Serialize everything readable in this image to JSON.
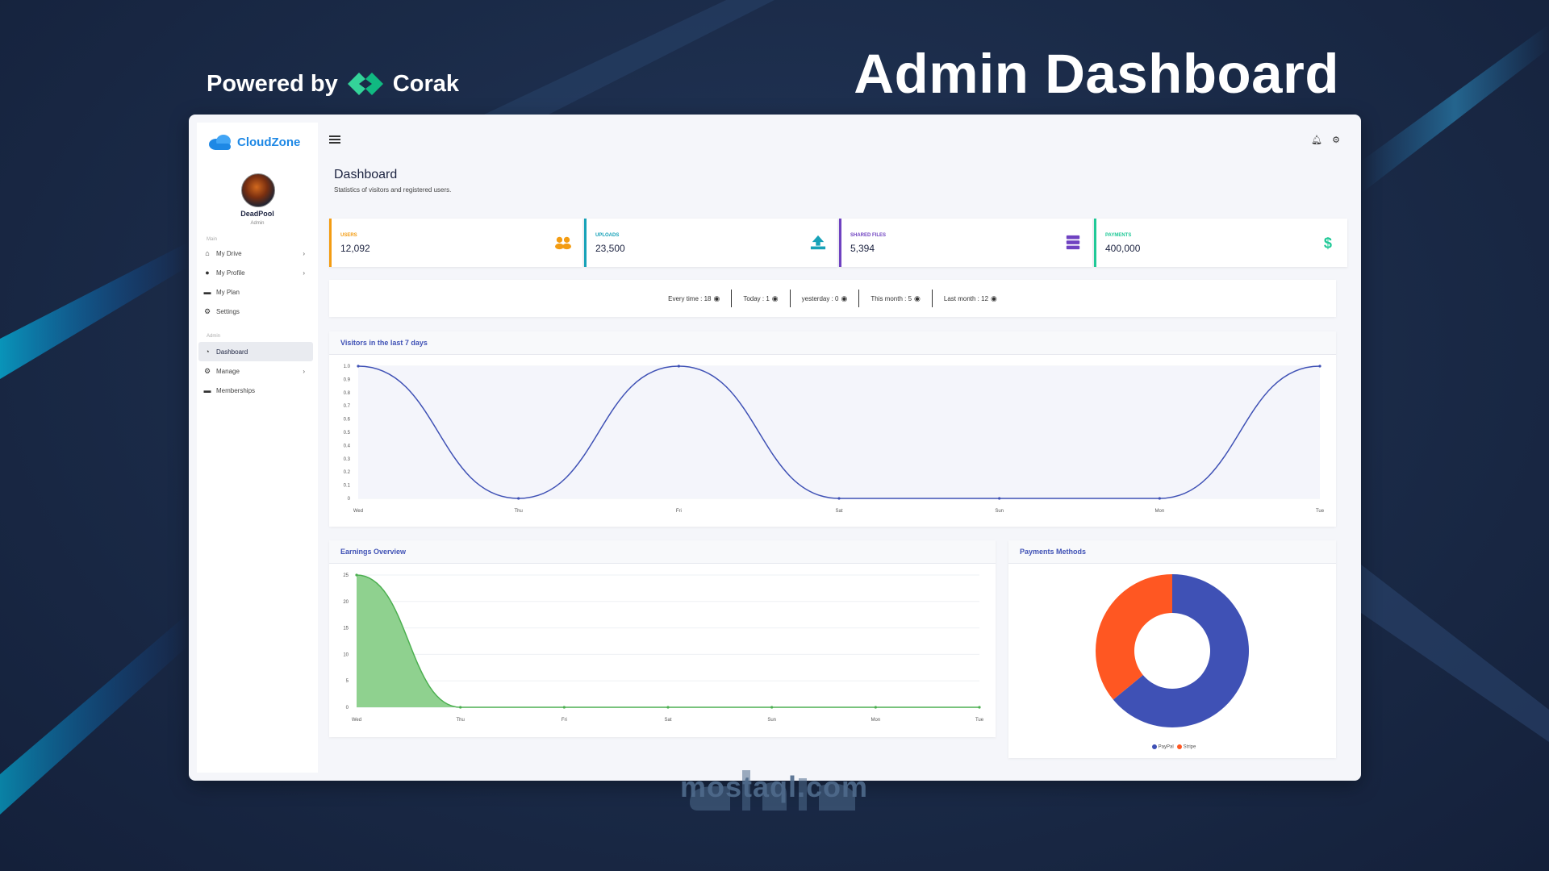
{
  "promo": {
    "powered_by": "Powered by",
    "corak": "Corak",
    "title": "Admin Dashboard",
    "watermark": "mostaql.com"
  },
  "app": {
    "brand": "CloudZone",
    "user": {
      "name": "DeadPool",
      "role": "Admin"
    },
    "sections": {
      "main": "Main",
      "admin": "Admin"
    },
    "nav_main": [
      {
        "label": "My Drive",
        "icon": "home-icon",
        "chevron": true
      },
      {
        "label": "My Profile",
        "icon": "user-icon",
        "chevron": true
      },
      {
        "label": "My Plan",
        "icon": "car-icon",
        "chevron": false
      },
      {
        "label": "Settings",
        "icon": "gear-icon",
        "chevron": false
      }
    ],
    "nav_admin": [
      {
        "label": "Dashboard",
        "icon": "dashboard-icon",
        "chevron": false,
        "active": true
      },
      {
        "label": "Manage",
        "icon": "gears-icon",
        "chevron": true
      },
      {
        "label": "Memberships",
        "icon": "car-icon",
        "chevron": false
      }
    ],
    "page_title": "Dashboard",
    "page_subtitle": "Statistics of visitors and registered users.",
    "stats": [
      {
        "label": "USERS",
        "value": "12,092",
        "color": "#f39c12",
        "icon": "users-icon"
      },
      {
        "label": "UPLOADS",
        "value": "23,500",
        "color": "#17a2b8",
        "icon": "upload-icon"
      },
      {
        "label": "SHARED FILES",
        "value": "5,394",
        "color": "#6f42c1",
        "icon": "server-icon"
      },
      {
        "label": "PAYMENTS",
        "value": "400,000",
        "color": "#20c997",
        "icon": "dollar-icon"
      }
    ],
    "visits": [
      "Every time : 18",
      "Today : 1",
      "yesterday : 0",
      "This month : 5",
      "Last month : 12"
    ],
    "visitors_card_title": "Visitors in the last 7 days",
    "earnings_card_title": "Earnings Overview",
    "payments_card_title": "Payments Methods"
  },
  "chart_data": [
    {
      "type": "line",
      "title": "Visitors in the last 7 days",
      "categories": [
        "Wed",
        "Thu",
        "Fri",
        "Sat",
        "Sun",
        "Mon",
        "Tue"
      ],
      "values": [
        1,
        0,
        1,
        0,
        0,
        0,
        1
      ],
      "ylim": [
        0,
        1
      ],
      "yticks": [
        "0",
        "0.1",
        "0.2",
        "0.3",
        "0.4",
        "0.5",
        "0.6",
        "0.7",
        "0.8",
        "0.9",
        "1.0"
      ],
      "color": "#3f51b5"
    },
    {
      "type": "area",
      "title": "Earnings Overview",
      "categories": [
        "Wed",
        "Thu",
        "Fri",
        "Sat",
        "Sun",
        "Mon",
        "Tue"
      ],
      "values": [
        25,
        0,
        0,
        0,
        0,
        0,
        0
      ],
      "ylim": [
        0,
        25
      ],
      "yticks": [
        "0",
        "5",
        "10",
        "15",
        "20",
        "25"
      ],
      "color": "#4caf50"
    },
    {
      "type": "pie",
      "title": "Payments Methods",
      "labels": [
        "PayPal",
        "Stripe"
      ],
      "values": [
        64,
        36
      ],
      "colors": [
        "#3f51b5",
        "#ff5722"
      ]
    }
  ]
}
